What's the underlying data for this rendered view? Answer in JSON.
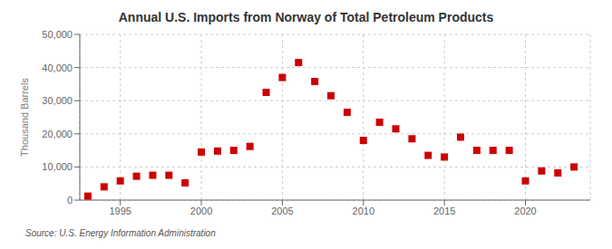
{
  "chart_data": {
    "type": "scatter",
    "title": "Annual U.S. Imports from Norway of Total Petroleum Products",
    "ylabel": "Thousand Barrels",
    "annotations": [
      "Source: U.S. Energy Information Administration"
    ],
    "x": [
      1993,
      1994,
      1995,
      1996,
      1997,
      1998,
      1999,
      2000,
      2001,
      2002,
      2003,
      2004,
      2005,
      2006,
      2007,
      2008,
      2009,
      2010,
      2011,
      2012,
      2013,
      2014,
      2015,
      2016,
      2017,
      2018,
      2019,
      2020,
      2021,
      2022,
      2023
    ],
    "values": [
      1200,
      4000,
      5800,
      7200,
      7500,
      7500,
      5200,
      14500,
      14800,
      15000,
      16200,
      32500,
      37000,
      41500,
      35800,
      31500,
      26500,
      18000,
      23500,
      21500,
      18500,
      13500,
      13000,
      19000,
      15000,
      15000,
      15000,
      5800,
      8800,
      8200,
      10000
    ],
    "color": "#cc0000",
    "marker": "square",
    "xlim": [
      1992.5,
      2024
    ],
    "xticks": [
      1995,
      2000,
      2005,
      2010,
      2015,
      2020
    ],
    "ylim": [
      0,
      50000
    ],
    "yticks": [
      0,
      {
        "value": 10000,
        "label": "10,000"
      },
      {
        "value": 20000,
        "label": "20,000"
      },
      {
        "value": 30000,
        "label": "30,000"
      },
      {
        "value": 40000,
        "label": "40,000"
      },
      {
        "value": 50000,
        "label": "50,000"
      }
    ],
    "grid": true
  }
}
